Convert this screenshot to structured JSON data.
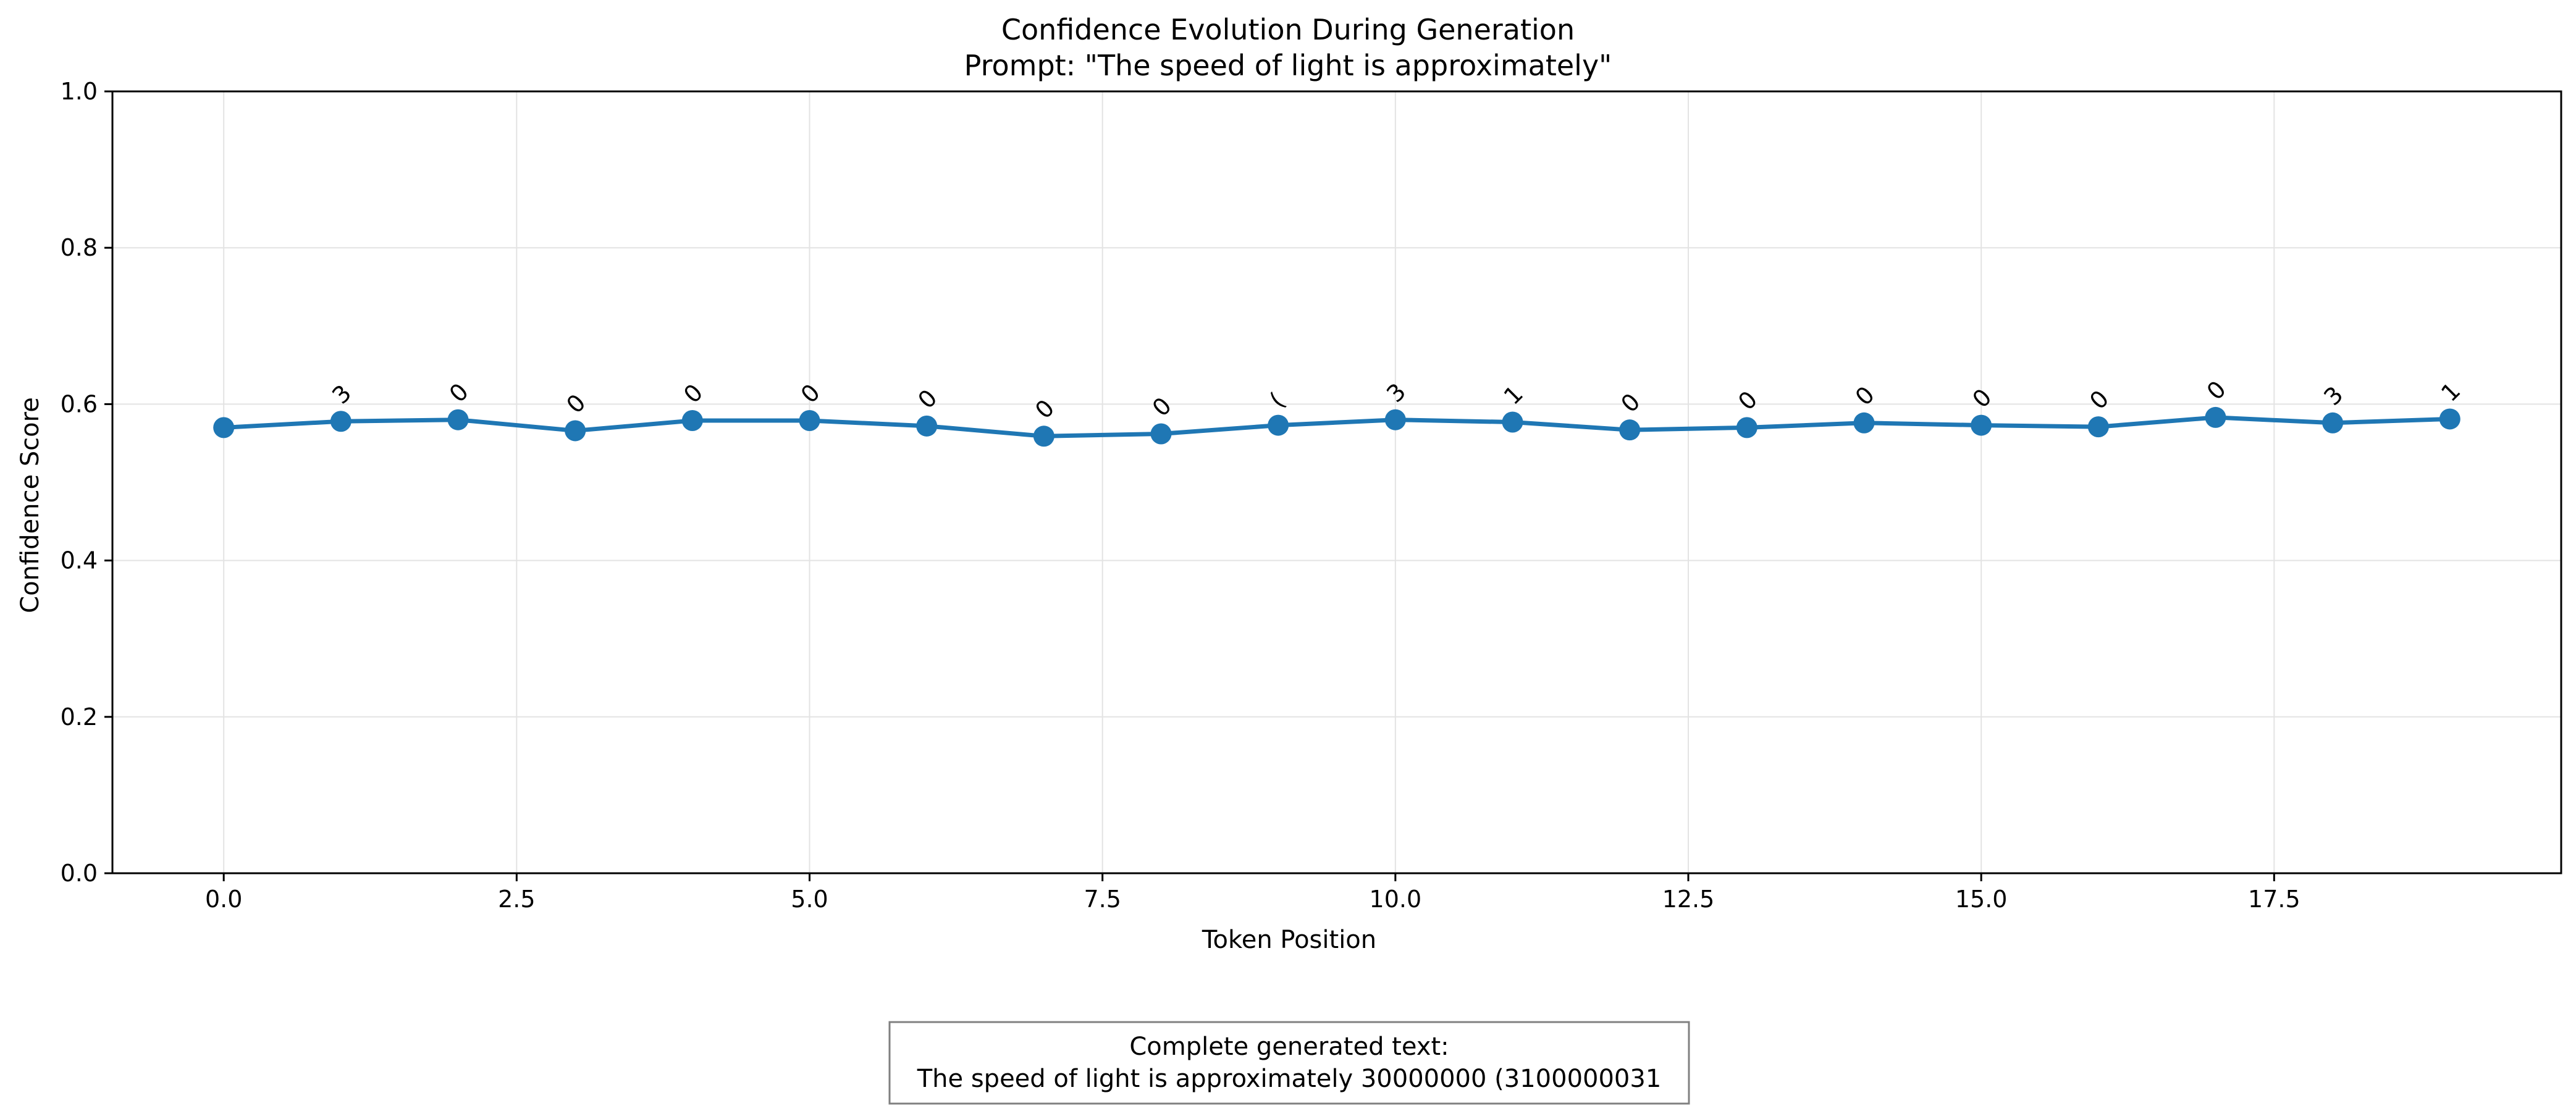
{
  "chart_data": {
    "type": "line",
    "title": "Confidence Evolution During Generation",
    "subtitle": "Prompt: \"The speed of light is approximately\"",
    "xlabel": "Token Position",
    "ylabel": "Confidence Score",
    "xlim": [
      -0.95,
      19.95
    ],
    "ylim": [
      0.0,
      1.0
    ],
    "x_ticks": [
      0.0,
      2.5,
      5.0,
      7.5,
      10.0,
      12.5,
      15.0,
      17.5
    ],
    "x_tick_labels": [
      "0.0",
      "2.5",
      "5.0",
      "7.5",
      "10.0",
      "12.5",
      "15.0",
      "17.5"
    ],
    "y_ticks": [
      0.0,
      0.2,
      0.4,
      0.6,
      0.8,
      1.0
    ],
    "y_tick_labels": [
      "0.0",
      "0.2",
      "0.4",
      "0.6",
      "0.8",
      "1.0"
    ],
    "grid": true,
    "series": [
      {
        "color": "#1f77b4",
        "x": [
          0,
          1,
          2,
          3,
          4,
          5,
          6,
          7,
          8,
          9,
          10,
          11,
          12,
          13,
          14,
          15,
          16,
          17,
          18,
          19
        ],
        "values": [
          0.57,
          0.578,
          0.58,
          0.566,
          0.579,
          0.579,
          0.572,
          0.559,
          0.562,
          0.573,
          0.58,
          0.577,
          0.567,
          0.57,
          0.576,
          0.573,
          0.571,
          0.583,
          0.576,
          0.581
        ]
      }
    ],
    "point_labels": [
      {
        "x": 1,
        "text": "3"
      },
      {
        "x": 2,
        "text": "0"
      },
      {
        "x": 3,
        "text": "0"
      },
      {
        "x": 4,
        "text": "0"
      },
      {
        "x": 5,
        "text": "0"
      },
      {
        "x": 6,
        "text": "0"
      },
      {
        "x": 7,
        "text": "0"
      },
      {
        "x": 8,
        "text": "0"
      },
      {
        "x": 9,
        "text": "("
      },
      {
        "x": 10,
        "text": "3"
      },
      {
        "x": 11,
        "text": "1"
      },
      {
        "x": 12,
        "text": "0"
      },
      {
        "x": 13,
        "text": "0"
      },
      {
        "x": 14,
        "text": "0"
      },
      {
        "x": 15,
        "text": "0"
      },
      {
        "x": 16,
        "text": "0"
      },
      {
        "x": 17,
        "text": "0"
      },
      {
        "x": 18,
        "text": "3"
      },
      {
        "x": 19,
        "text": "1"
      }
    ],
    "caption": {
      "line1": "Complete generated text:",
      "line2": "The speed of light is approximately 30000000 (3100000031"
    }
  }
}
